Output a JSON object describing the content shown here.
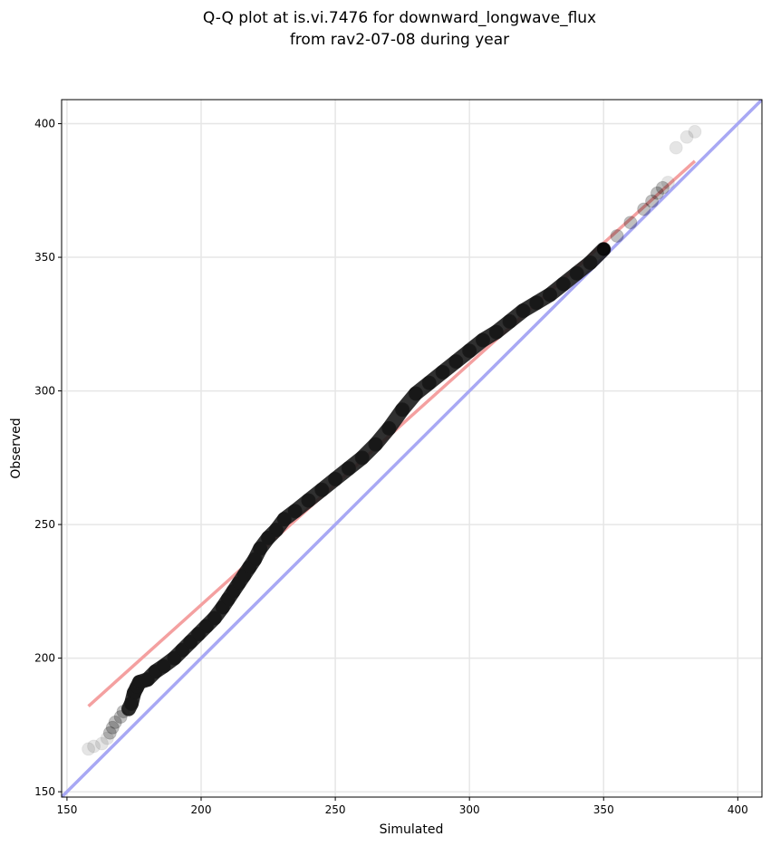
{
  "chart_data": {
    "type": "scatter",
    "title": "Q-Q plot at is.vi.7476 for downward_longwave_flux",
    "subtitle": "from rav2-07-08 during year",
    "xlabel": "Simulated",
    "ylabel": "Observed",
    "xlim": [
      148,
      409
    ],
    "ylim": [
      148,
      409
    ],
    "xticks": [
      150,
      200,
      250,
      300,
      350,
      400
    ],
    "yticks": [
      150,
      200,
      250,
      300,
      350,
      400
    ],
    "grid": true,
    "series": [
      {
        "marker": "circle",
        "color": "#000000",
        "points": [
          [
            158,
            166
          ],
          [
            160,
            167
          ],
          [
            163,
            168
          ],
          [
            165,
            170
          ],
          [
            166,
            172
          ],
          [
            167,
            174
          ],
          [
            168,
            176
          ],
          [
            170,
            178
          ],
          [
            171,
            180
          ],
          [
            173,
            181
          ],
          [
            174,
            183
          ],
          [
            175,
            187
          ],
          [
            176,
            189
          ],
          [
            177,
            191
          ],
          [
            180,
            192
          ],
          [
            183,
            195
          ],
          [
            186,
            197
          ],
          [
            190,
            200
          ],
          [
            193,
            203
          ],
          [
            196,
            206
          ],
          [
            199,
            209
          ],
          [
            202,
            212
          ],
          [
            205,
            215
          ],
          [
            208,
            219
          ],
          [
            210,
            222
          ],
          [
            212,
            225
          ],
          [
            214,
            228
          ],
          [
            216,
            231
          ],
          [
            218,
            234
          ],
          [
            220,
            237
          ],
          [
            222,
            241
          ],
          [
            225,
            245
          ],
          [
            228,
            248
          ],
          [
            231,
            252
          ],
          [
            235,
            255
          ],
          [
            240,
            259
          ],
          [
            245,
            263
          ],
          [
            250,
            267
          ],
          [
            255,
            271
          ],
          [
            260,
            275
          ],
          [
            265,
            280
          ],
          [
            270,
            286
          ],
          [
            275,
            293
          ],
          [
            280,
            299
          ],
          [
            285,
            303
          ],
          [
            290,
            307
          ],
          [
            295,
            311
          ],
          [
            300,
            315
          ],
          [
            305,
            319
          ],
          [
            310,
            322
          ],
          [
            315,
            326
          ],
          [
            320,
            330
          ],
          [
            325,
            333
          ],
          [
            330,
            336
          ],
          [
            335,
            340
          ],
          [
            340,
            344
          ],
          [
            345,
            348
          ],
          [
            350,
            353
          ],
          [
            355,
            358
          ],
          [
            360,
            363
          ],
          [
            365,
            368
          ],
          [
            368,
            371
          ],
          [
            370,
            374
          ],
          [
            372,
            376
          ],
          [
            374,
            378
          ],
          [
            377,
            391
          ],
          [
            381,
            395
          ],
          [
            384,
            397
          ]
        ]
      }
    ],
    "reference_lines": [
      {
        "name": "",
        "color": "#f4a0a0",
        "x": [
          158,
          384
        ],
        "y": [
          182,
          386
        ]
      },
      {
        "name": "",
        "color": "#a8a8f4",
        "x": [
          148,
          409
        ],
        "y": [
          148,
          409
        ]
      }
    ]
  }
}
